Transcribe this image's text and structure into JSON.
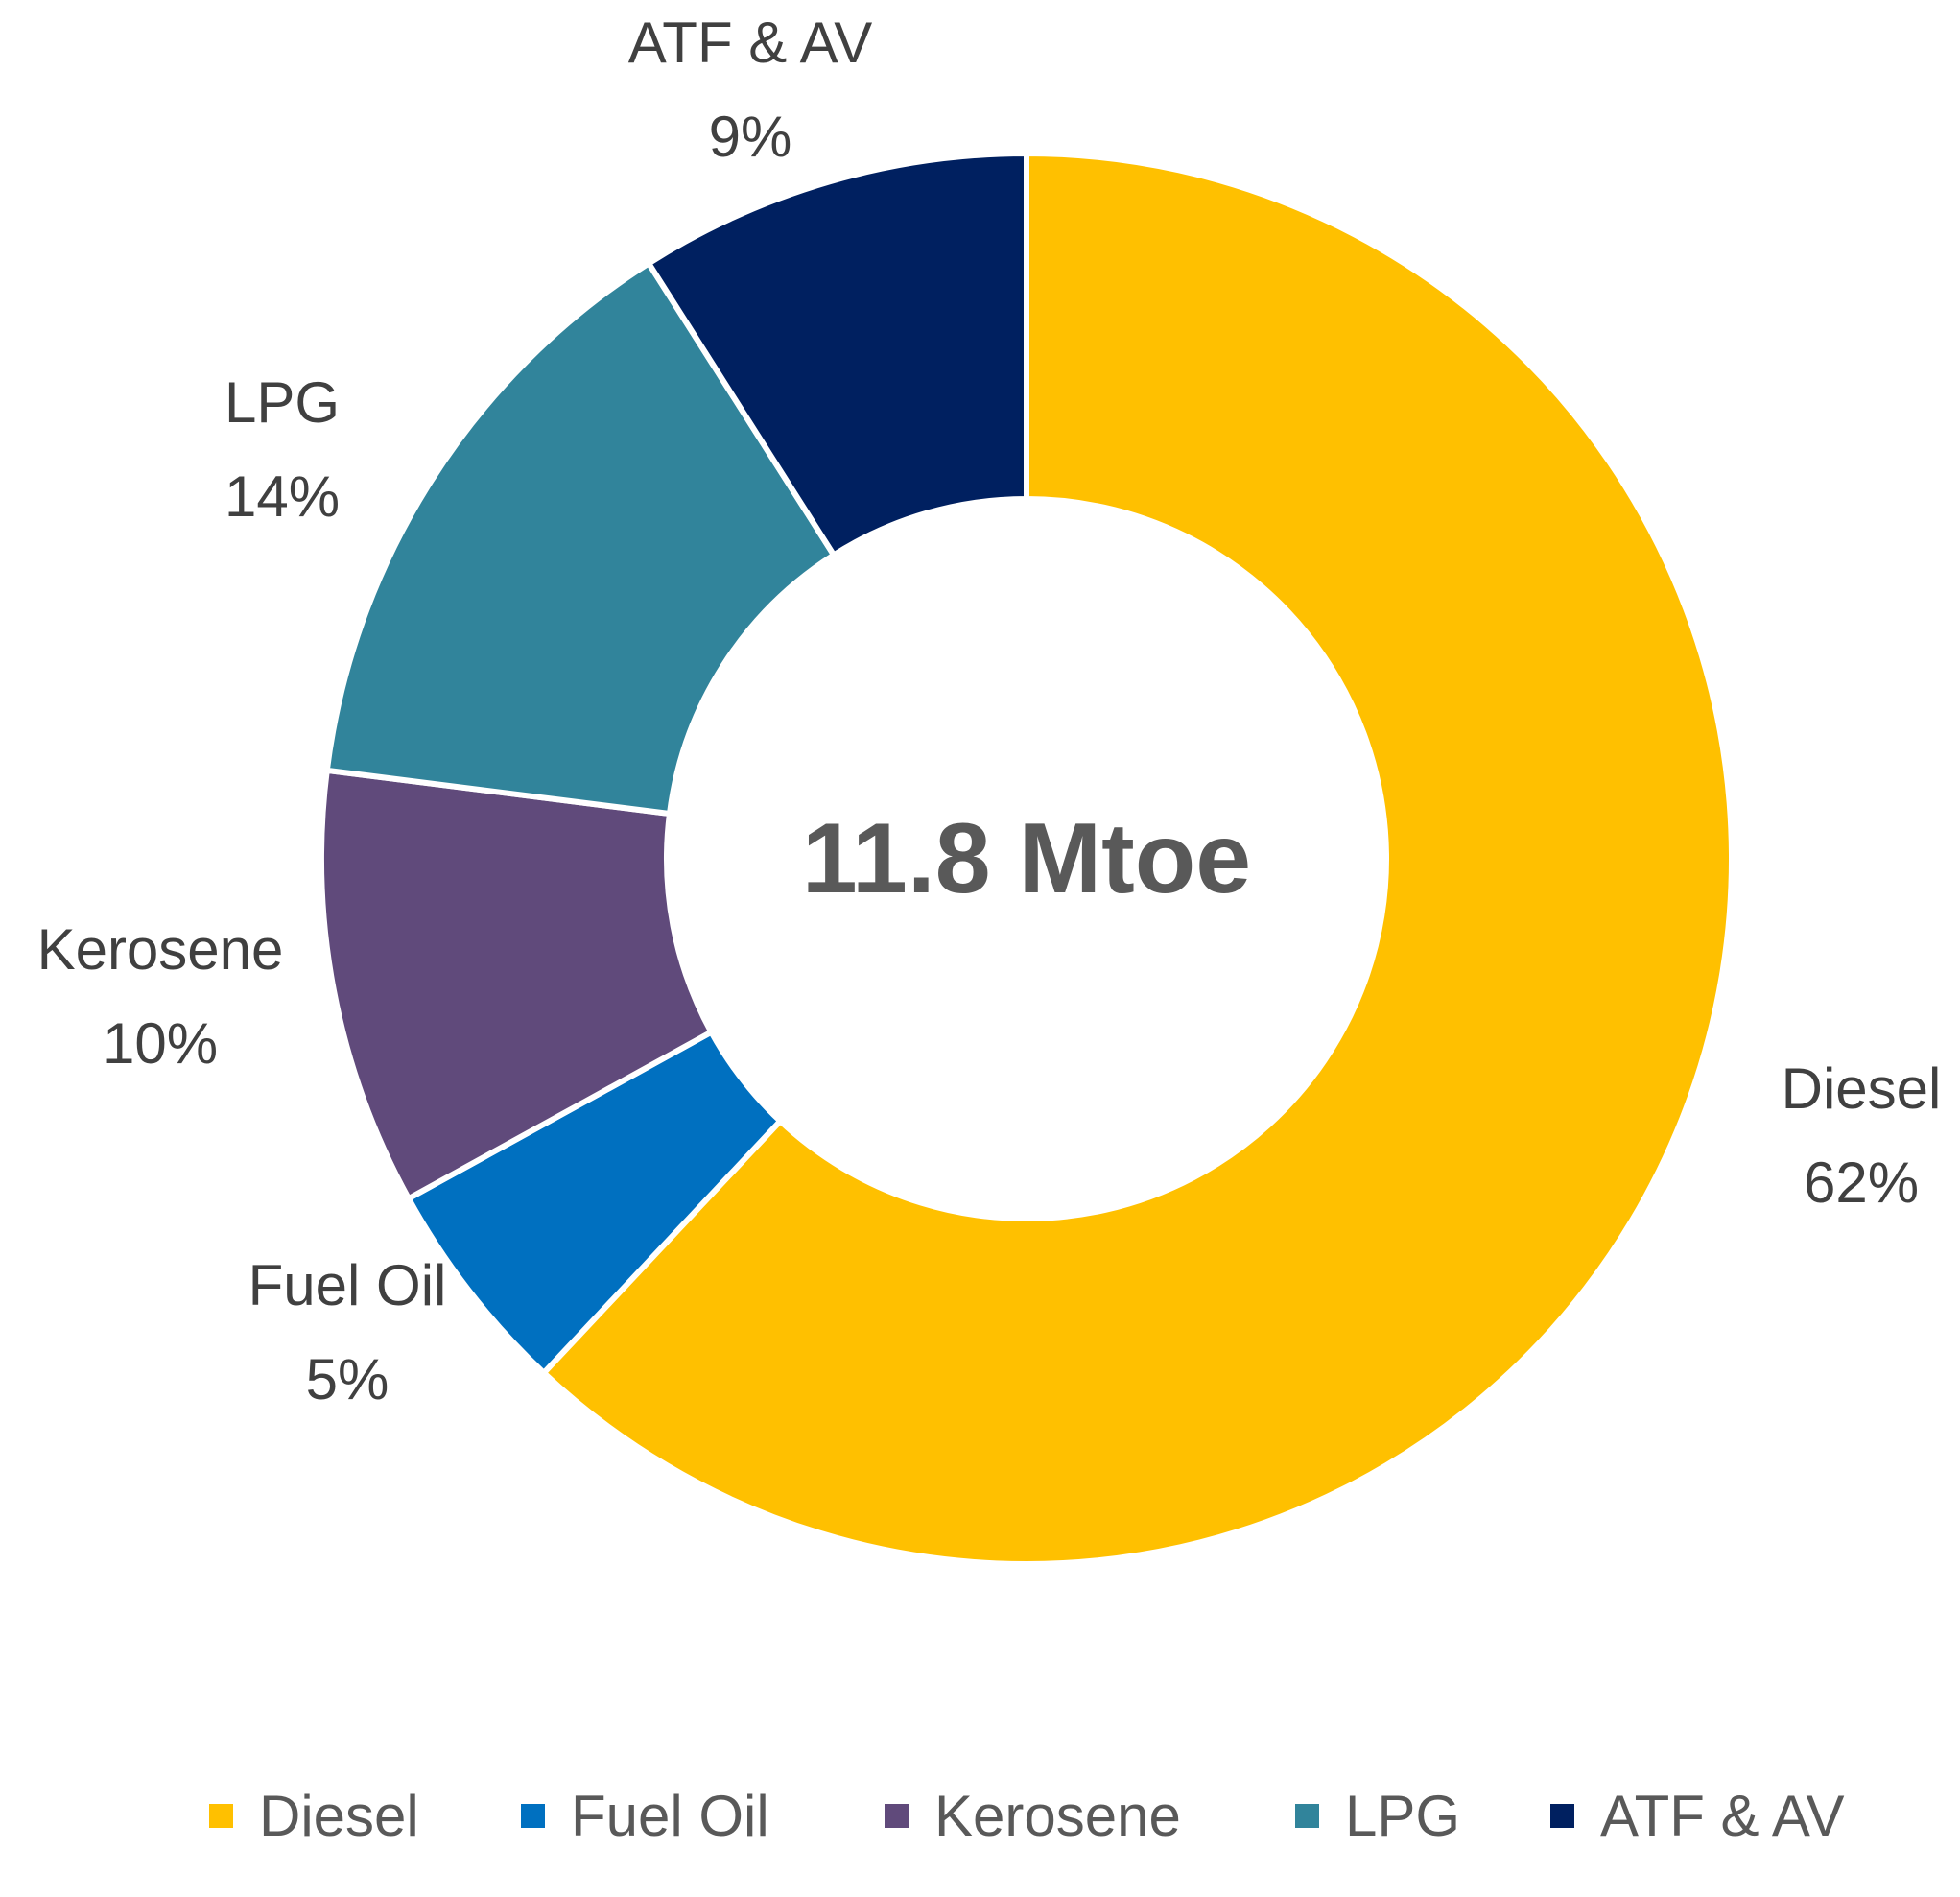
{
  "chart_data": {
    "type": "pie",
    "donut": true,
    "center_label": "11.8 Mtoe",
    "categories": [
      "Diesel",
      "Fuel Oil",
      "Kerosene",
      "LPG",
      "ATF & AV"
    ],
    "values": [
      62,
      5,
      10,
      14,
      9
    ],
    "value_labels": [
      "62%",
      "5%",
      "10%",
      "14%",
      "9%"
    ],
    "colors": [
      "#FFC000",
      "#0070C0",
      "#604A7B",
      "#31849B",
      "#002060"
    ],
    "legend": {
      "position": "bottom",
      "items": [
        "Diesel",
        "Fuel Oil",
        "Kerosene",
        "LPG",
        "ATF & AV"
      ]
    }
  }
}
